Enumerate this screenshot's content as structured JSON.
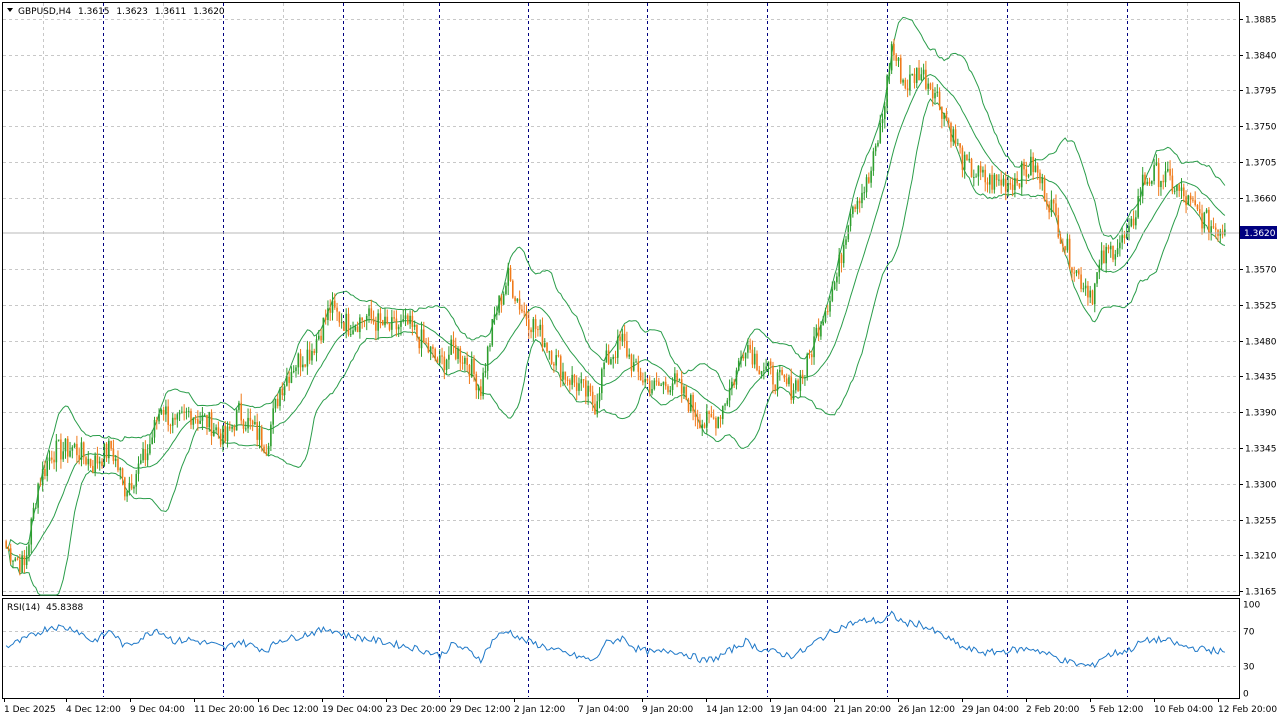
{
  "header": {
    "symbol": "GBPUSD,H4",
    "o": "1.3615",
    "h": "1.3623",
    "l": "1.3611",
    "c": "1.3620"
  },
  "rsi_header": {
    "label": "RSI(14)",
    "value": "45.8388"
  },
  "price_tag": "1.3620",
  "colors": {
    "up_candle": "#2e9e2e",
    "down_candle": "#f07a1a",
    "bands": "#2a9d4a",
    "rsi_line": "#1e78c8",
    "grid": "#c8c8c8",
    "separator": "#000080",
    "price_tag_bg": "#000080"
  },
  "chart_data": [
    {
      "type": "candlestick",
      "symbol": "GBPUSD",
      "timeframe": "H4",
      "y_ticks": [
        "1.3885",
        "1.3840",
        "1.3795",
        "1.3750",
        "1.3705",
        "1.3660",
        "1.3620",
        "1.3570",
        "1.3525",
        "1.3480",
        "1.3435",
        "1.3390",
        "1.3345",
        "1.3300",
        "1.3255",
        "1.3210",
        "1.3165"
      ],
      "ylim": [
        1.316,
        1.3905
      ],
      "last_price": 1.362,
      "overlay": "Bollinger Bands",
      "close_path": [
        [
          0,
          1.322
        ],
        [
          8,
          1.3195
        ],
        [
          14,
          1.33
        ],
        [
          20,
          1.334
        ],
        [
          30,
          1.3345
        ],
        [
          38,
          1.3325
        ],
        [
          46,
          1.3345
        ],
        [
          52,
          1.3295
        ],
        [
          56,
          1.331
        ],
        [
          62,
          1.334
        ],
        [
          68,
          1.34
        ],
        [
          74,
          1.337
        ],
        [
          80,
          1.339
        ],
        [
          90,
          1.3375
        ],
        [
          96,
          1.3355
        ],
        [
          102,
          1.339
        ],
        [
          108,
          1.337
        ],
        [
          114,
          1.335
        ],
        [
          120,
          1.342
        ],
        [
          126,
          1.345
        ],
        [
          134,
          1.347
        ],
        [
          142,
          1.352
        ],
        [
          150,
          1.35
        ],
        [
          158,
          1.351
        ],
        [
          168,
          1.3495
        ],
        [
          176,
          1.35
        ],
        [
          182,
          1.348
        ],
        [
          190,
          1.345
        ],
        [
          196,
          1.347
        ],
        [
          202,
          1.3455
        ],
        [
          208,
          1.342
        ],
        [
          214,
          1.351
        ],
        [
          220,
          1.356
        ],
        [
          226,
          1.352
        ],
        [
          236,
          1.348
        ],
        [
          244,
          1.344
        ],
        [
          252,
          1.342
        ],
        [
          258,
          1.34
        ],
        [
          262,
          1.345
        ],
        [
          270,
          1.348
        ],
        [
          276,
          1.344
        ],
        [
          284,
          1.342
        ],
        [
          292,
          1.343
        ],
        [
          300,
          1.34
        ],
        [
          306,
          1.3375
        ],
        [
          312,
          1.3385
        ],
        [
          320,
          1.344
        ],
        [
          324,
          1.348
        ],
        [
          330,
          1.345
        ],
        [
          338,
          1.343
        ],
        [
          344,
          1.342
        ],
        [
          350,
          1.344
        ],
        [
          356,
          1.35
        ],
        [
          364,
          1.356
        ],
        [
          370,
          1.365
        ],
        [
          378,
          1.368
        ],
        [
          384,
          1.376
        ],
        [
          388,
          1.385
        ],
        [
          394,
          1.38
        ],
        [
          400,
          1.382
        ],
        [
          406,
          1.38
        ],
        [
          412,
          1.376
        ],
        [
          420,
          1.37
        ],
        [
          430,
          1.368
        ],
        [
          440,
          1.368
        ],
        [
          450,
          1.37
        ],
        [
          458,
          1.365
        ],
        [
          464,
          1.36
        ],
        [
          470,
          1.356
        ],
        [
          476,
          1.354
        ],
        [
          480,
          1.358
        ],
        [
          486,
          1.36
        ],
        [
          492,
          1.361
        ],
        [
          498,
          1.368
        ],
        [
          504,
          1.369
        ],
        [
          510,
          1.368
        ],
        [
          516,
          1.366
        ],
        [
          522,
          1.364
        ],
        [
          528,
          1.3625
        ],
        [
          534,
          1.362
        ]
      ]
    },
    {
      "type": "line",
      "indicator": "RSI(14)",
      "last_value": 45.8388,
      "y_ticks": [
        "100",
        "70",
        "30",
        "0"
      ],
      "ylim": [
        0,
        100
      ],
      "values_path": [
        [
          0,
          52
        ],
        [
          8,
          60
        ],
        [
          14,
          68
        ],
        [
          20,
          75
        ],
        [
          30,
          72
        ],
        [
          38,
          58
        ],
        [
          46,
          70
        ],
        [
          52,
          52
        ],
        [
          58,
          60
        ],
        [
          66,
          72
        ],
        [
          74,
          58
        ],
        [
          80,
          60
        ],
        [
          90,
          55
        ],
        [
          96,
          50
        ],
        [
          102,
          58
        ],
        [
          108,
          53
        ],
        [
          114,
          48
        ],
        [
          120,
          60
        ],
        [
          126,
          62
        ],
        [
          134,
          68
        ],
        [
          142,
          72
        ],
        [
          150,
          64
        ],
        [
          160,
          60
        ],
        [
          170,
          55
        ],
        [
          180,
          50
        ],
        [
          190,
          42
        ],
        [
          196,
          55
        ],
        [
          202,
          48
        ],
        [
          208,
          38
        ],
        [
          214,
          62
        ],
        [
          220,
          70
        ],
        [
          226,
          60
        ],
        [
          236,
          52
        ],
        [
          244,
          45
        ],
        [
          252,
          40
        ],
        [
          258,
          36
        ],
        [
          262,
          55
        ],
        [
          270,
          62
        ],
        [
          276,
          50
        ],
        [
          284,
          45
        ],
        [
          292,
          48
        ],
        [
          300,
          42
        ],
        [
          306,
          36
        ],
        [
          312,
          40
        ],
        [
          320,
          52
        ],
        [
          324,
          58
        ],
        [
          330,
          50
        ],
        [
          338,
          45
        ],
        [
          344,
          42
        ],
        [
          350,
          48
        ],
        [
          356,
          60
        ],
        [
          364,
          72
        ],
        [
          370,
          78
        ],
        [
          378,
          82
        ],
        [
          384,
          80
        ],
        [
          388,
          88
        ],
        [
          394,
          78
        ],
        [
          400,
          78
        ],
        [
          406,
          70
        ],
        [
          412,
          62
        ],
        [
          420,
          50
        ],
        [
          430,
          45
        ],
        [
          440,
          48
        ],
        [
          450,
          50
        ],
        [
          458,
          42
        ],
        [
          464,
          36
        ],
        [
          470,
          32
        ],
        [
          476,
          30
        ],
        [
          480,
          40
        ],
        [
          486,
          45
        ],
        [
          492,
          48
        ],
        [
          498,
          58
        ],
        [
          504,
          60
        ],
        [
          510,
          58
        ],
        [
          516,
          52
        ],
        [
          522,
          50
        ],
        [
          528,
          48
        ],
        [
          534,
          46
        ]
      ]
    }
  ],
  "x_labels": [
    "1 Dec 2025",
    "4 Dec 12:00",
    "9 Dec 04:00",
    "11 Dec 20:00",
    "16 Dec 12:00",
    "19 Dec 04:00",
    "23 Dec 20:00",
    "29 Dec 12:00",
    "2 Jan 12:00",
    "7 Jan 04:00",
    "9 Jan 20:00",
    "14 Jan 12:00",
    "19 Jan 04:00",
    "21 Jan 20:00",
    "26 Jan 12:00",
    "29 Jan 04:00",
    "2 Feb 20:00",
    "5 Feb 12:00",
    "10 Feb 04:00",
    "12 Feb 20:00"
  ]
}
